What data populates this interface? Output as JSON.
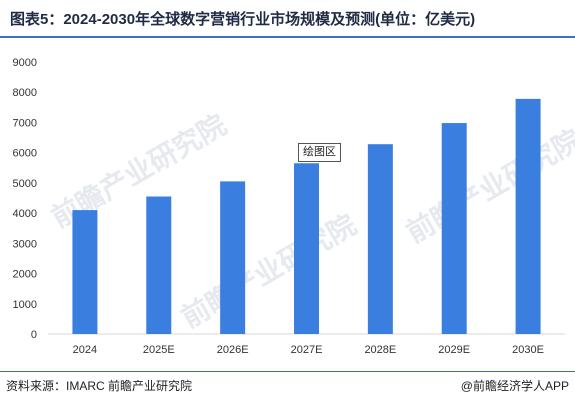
{
  "title": "图表5：2024-2030年全球数字营销行业市场规模及预测(单位：亿美元)",
  "tooltip_label": "绘图区",
  "watermark_text": "前瞻产业研究院",
  "footer": {
    "source": "资料来源：IMARC 前瞻产业研究院",
    "brand": "@前瞻经济学人APP"
  },
  "colors": {
    "bar": "#3a7fe0",
    "title_rule": "#3d6fc9"
  },
  "chart_data": {
    "type": "bar",
    "categories": [
      "2024",
      "2025E",
      "2026E",
      "2027E",
      "2028E",
      "2029E",
      "2030E"
    ],
    "values": [
      4100,
      4550,
      5050,
      5650,
      6280,
      6980,
      7780
    ],
    "ylim": [
      0,
      9000
    ],
    "yticks": [
      "0",
      "1000",
      "2000",
      "3000",
      "4000",
      "5000",
      "6000",
      "7000",
      "8000",
      "9000"
    ],
    "grid": false,
    "legend": "none"
  }
}
